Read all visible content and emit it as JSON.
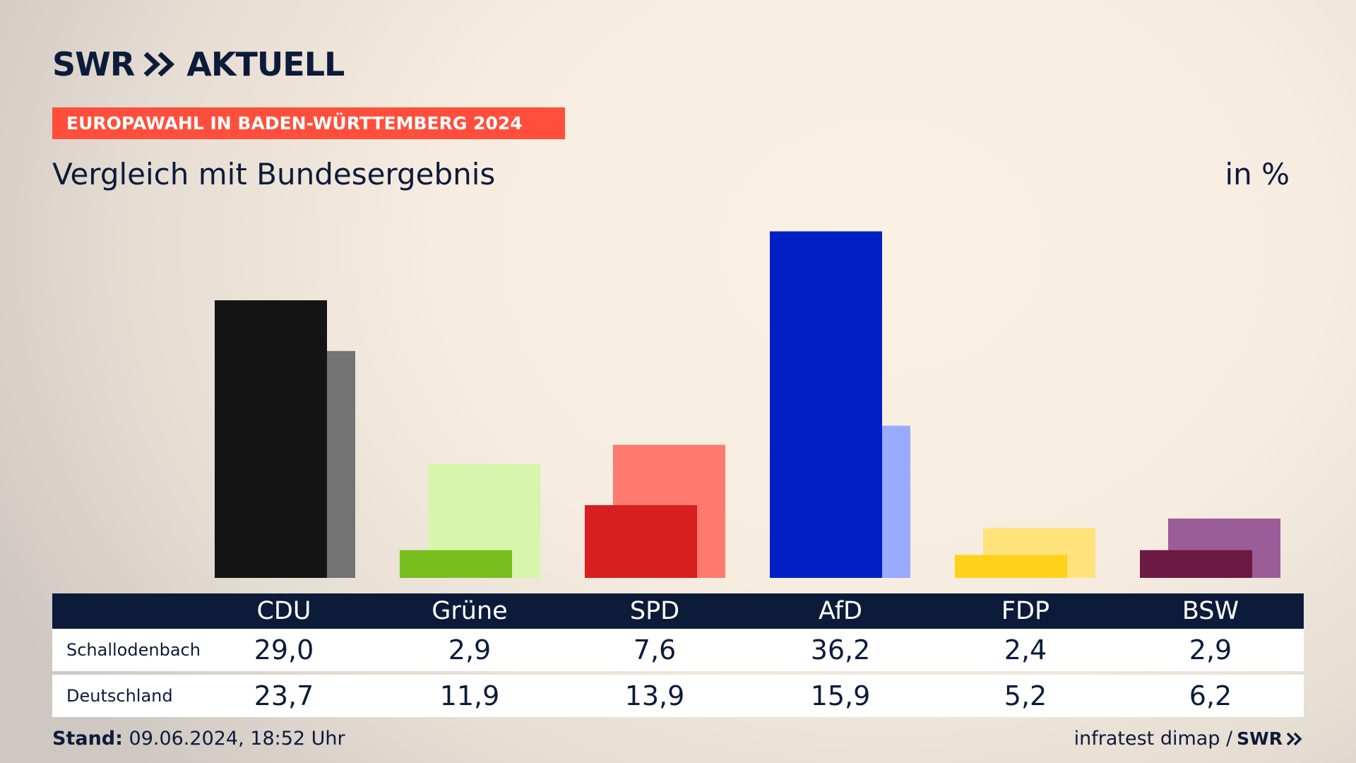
{
  "header": {
    "logo": "SWR AKTUELL",
    "logo_left": "SWR",
    "logo_right": "AKTUELL",
    "ribbon": "EUROPAWAHL IN BADEN-WÜRTTEMBERG 2024",
    "subtitle": "Vergleich mit Bundesergebnis",
    "unit": "in %"
  },
  "chart_data": {
    "type": "bar",
    "categories": [
      "CDU",
      "Grüne",
      "SPD",
      "AfD",
      "FDP",
      "BSW"
    ],
    "series": [
      {
        "name": "Schallodenbach",
        "values": [
          29.0,
          2.9,
          7.6,
          36.2,
          2.4,
          2.9
        ]
      },
      {
        "name": "Deutschland",
        "values": [
          23.7,
          11.9,
          13.9,
          15.9,
          5.2,
          6.2
        ]
      }
    ],
    "colors": {
      "primary": [
        "#141414",
        "#78bf1e",
        "#d71f1f",
        "#0020c6",
        "#ffd21a",
        "#6b1a44"
      ],
      "secondary": [
        "#737373",
        "#d7f5ab",
        "#ff7a6e",
        "#9aaaff",
        "#ffe37a",
        "#9b5d97"
      ]
    },
    "ylim": [
      0,
      40
    ]
  },
  "table": {
    "headers": [
      "CDU",
      "Grüne",
      "SPD",
      "AfD",
      "FDP",
      "BSW"
    ],
    "rows": [
      {
        "label": "Schallodenbach",
        "values": [
          "29,0",
          "2,9",
          "7,6",
          "36,2",
          "2,4",
          "2,9"
        ]
      },
      {
        "label": "Deutschland",
        "values": [
          "23,7",
          "11,9",
          "13,9",
          "15,9",
          "5,2",
          "6,2"
        ]
      }
    ]
  },
  "footer": {
    "stand_label": "Stand:",
    "stand_value": "09.06.2024, 18:52 Uhr",
    "source": "infratest dimap /",
    "brand": "SWR"
  }
}
